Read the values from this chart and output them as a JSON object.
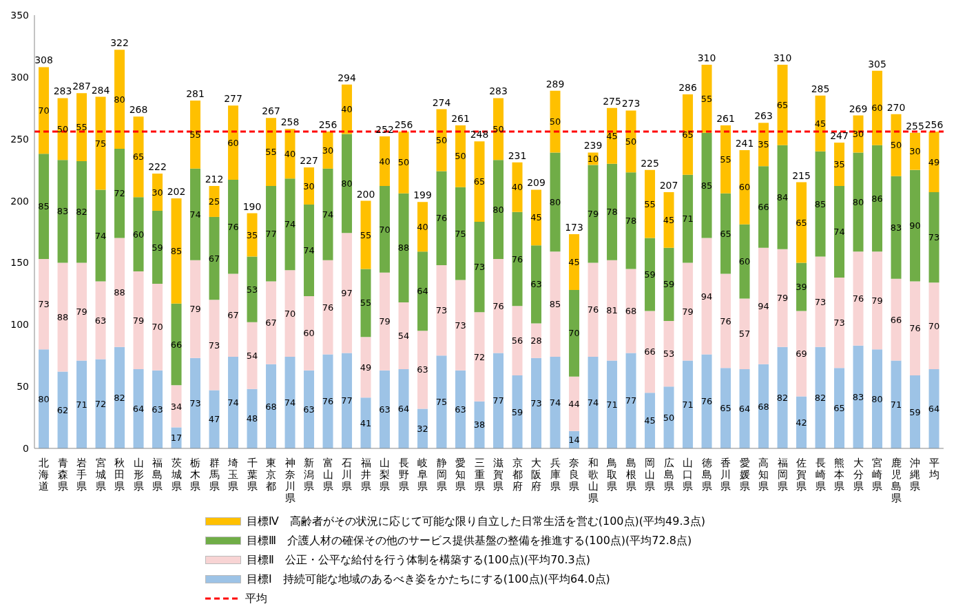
{
  "chart_data": {
    "type": "bar",
    "stacked": true,
    "data_labels": true,
    "legend": "bottom",
    "categories": [
      "北海道",
      "青森県",
      "岩手県",
      "宮城県",
      "秋田県",
      "山形県",
      "福島県",
      "茨城県",
      "栃木県",
      "群馬県",
      "埼玉県",
      "千葉県",
      "東京都",
      "神奈川県",
      "新潟県",
      "富山県",
      "石川県",
      "福井県",
      "山梨県",
      "長野県",
      "岐阜県",
      "静岡県",
      "愛知県",
      "三重県",
      "滋賀県",
      "京都府",
      "大阪府",
      "兵庫県",
      "奈良県",
      "和歌山県",
      "鳥取県",
      "島根県",
      "岡山県",
      "広島県",
      "山口県",
      "徳島県",
      "香川県",
      "愛媛県",
      "高知県",
      "福岡県",
      "佐賀県",
      "長崎県",
      "熊本県",
      "大分県",
      "宮崎県",
      "鹿児島県",
      "沖縄県",
      "平均"
    ],
    "series": [
      {
        "name": "目標Ⅰ　持続可能な地域のあるべき姿をかたちにする(100点)(平均64.0点)",
        "color": "#9dc3e6",
        "values": [
          80,
          62,
          71,
          72,
          82,
          64,
          63,
          17,
          73,
          47,
          74,
          48,
          68,
          74,
          63,
          76,
          77,
          41,
          63,
          64,
          32,
          75,
          63,
          38,
          77,
          59,
          73,
          74,
          14,
          74,
          71,
          77,
          45,
          50,
          71,
          76,
          65,
          64,
          68,
          82,
          42,
          82,
          65,
          83,
          80,
          71,
          59,
          64
        ]
      },
      {
        "name": "目標Ⅱ　公正・公平な給付を行う体制を構築する(100点)(平均70.3点)",
        "color": "#f8d4d4",
        "values": [
          73,
          88,
          79,
          63,
          88,
          79,
          70,
          34,
          79,
          73,
          67,
          54,
          67,
          70,
          60,
          76,
          97,
          49,
          79,
          54,
          63,
          73,
          73,
          72,
          76,
          56,
          28,
          85,
          44,
          76,
          81,
          68,
          66,
          53,
          79,
          94,
          76,
          57,
          94,
          79,
          69,
          73,
          73,
          76,
          79,
          66,
          76,
          70
        ]
      },
      {
        "name": "目標Ⅲ　介護人材の確保その他のサービス提供基盤の整備を推進する(100点)(平均72.8点)",
        "color": "#70ad47",
        "values": [
          85,
          83,
          82,
          74,
          72,
          60,
          59,
          66,
          74,
          67,
          76,
          53,
          77,
          74,
          74,
          74,
          80,
          55,
          70,
          88,
          64,
          76,
          75,
          73,
          80,
          76,
          63,
          80,
          70,
          79,
          78,
          78,
          59,
          59,
          71,
          85,
          65,
          60,
          66,
          84,
          39,
          85,
          74,
          80,
          86,
          83,
          90,
          73
        ]
      },
      {
        "name": "目標Ⅳ　高齢者がその状況に応じて可能な限り自立した日常生活を営む(100点)(平均49.3点)",
        "color": "#ffc000",
        "values": [
          70,
          50,
          55,
          75,
          80,
          65,
          30,
          85,
          55,
          25,
          60,
          35,
          55,
          40,
          30,
          30,
          40,
          55,
          40,
          50,
          40,
          50,
          50,
          65,
          50,
          40,
          45,
          50,
          45,
          10,
          45,
          50,
          55,
          45,
          65,
          55,
          55,
          60,
          35,
          65,
          65,
          45,
          35,
          30,
          60,
          50,
          30,
          49
        ]
      }
    ],
    "totals": [
      "308",
      "283",
      "287",
      "284",
      "322",
      "268",
      "222",
      "202",
      "281",
      "212",
      "277",
      "190",
      "267",
      "258",
      "227",
      "256",
      "294",
      "200",
      "252",
      "256",
      "199",
      "274",
      "261",
      "248",
      "283",
      "231",
      "209",
      "289",
      "173",
      "239",
      "275",
      "273",
      "225",
      "207",
      "286",
      "310",
      "261",
      "241",
      "263",
      "310",
      "215",
      "285",
      "247",
      "269",
      "305",
      "270",
      "255",
      "256"
    ],
    "ref_lines": [
      {
        "axis": "y",
        "value": 256,
        "label": "平均",
        "color": "#ff0000",
        "line_style": "dashed"
      }
    ],
    "ylim": [
      0,
      350
    ],
    "yticks": [
      0,
      50,
      100,
      150,
      200,
      250,
      300,
      350
    ]
  }
}
